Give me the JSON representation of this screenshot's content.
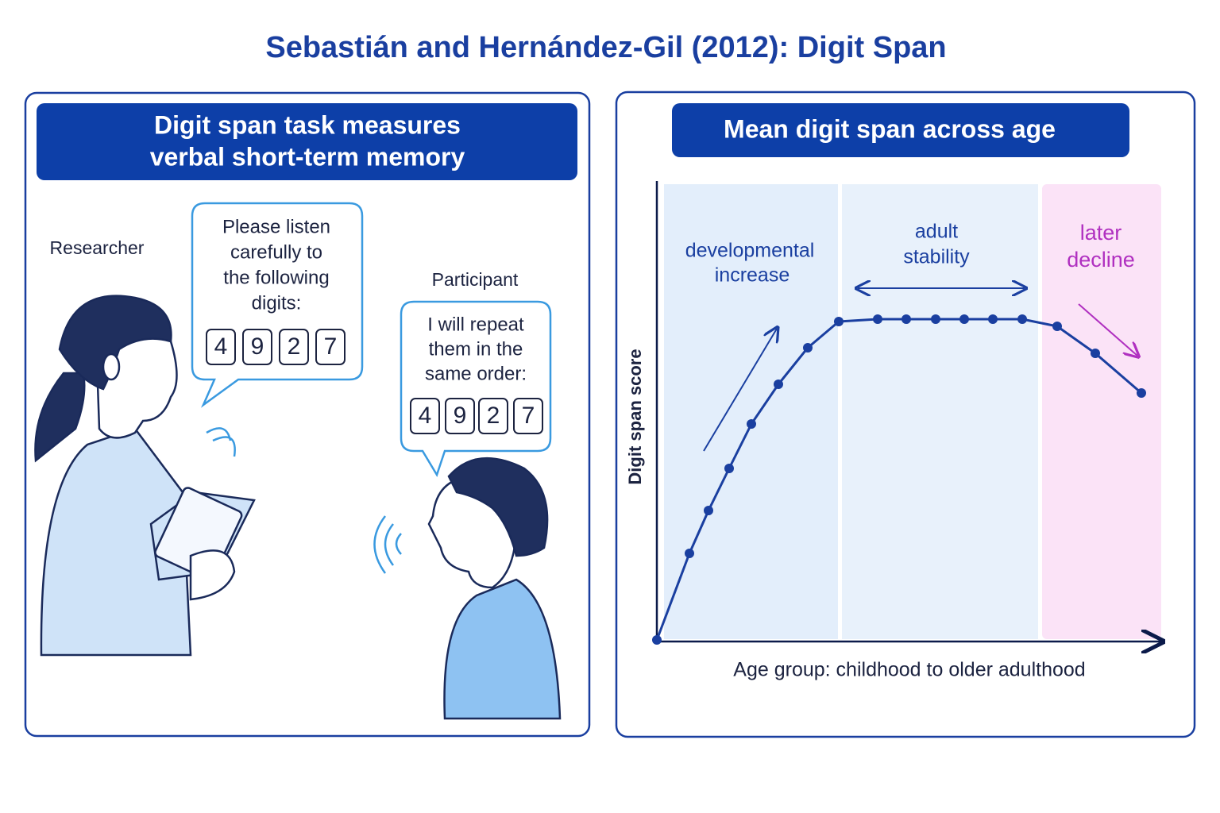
{
  "title": "Sebastián and Hernández-Gil (2012): Digit Span",
  "left_panel": {
    "heading": [
      "Digit span task measures",
      "verbal short-term memory"
    ],
    "researcher": {
      "label": "Researcher",
      "bubble": [
        "Please listen",
        "carefully to",
        "the following",
        "digits:"
      ],
      "digits": [
        "4",
        "9",
        "2",
        "7"
      ]
    },
    "participant": {
      "label": "Participant",
      "bubble": [
        "I will repeat",
        "them in the",
        "same order:"
      ],
      "digits": [
        "4",
        "9",
        "2",
        "7"
      ]
    }
  },
  "right_panel": {
    "heading": "Mean digit span across age",
    "regions": [
      [
        "developmental",
        "increase"
      ],
      [
        "adult",
        "stability"
      ],
      [
        "later",
        "decline"
      ]
    ],
    "y_label": "Digit span score",
    "x_label": "Age group: childhood to older adulthood"
  }
}
